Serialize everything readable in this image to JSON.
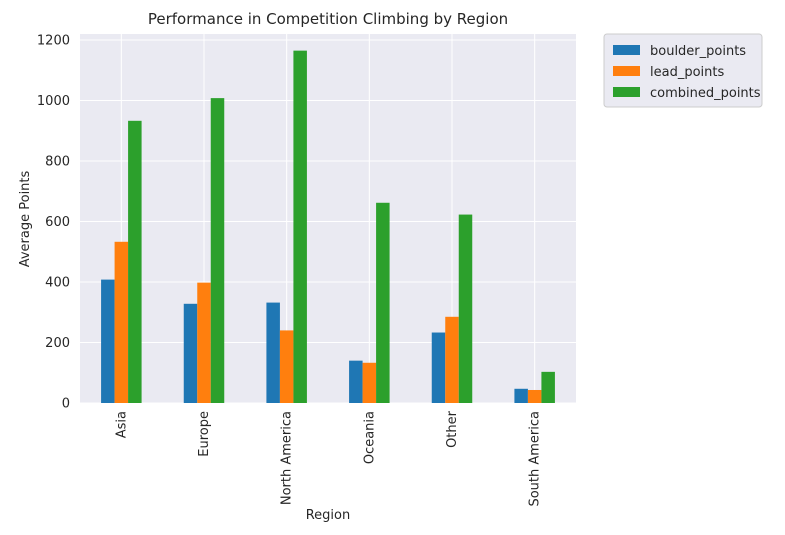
{
  "chart_data": {
    "type": "bar",
    "title": "Performance in Competition Climbing by Region",
    "xlabel": "Region",
    "ylabel": "Average Points",
    "ylim": [
      0,
      1220
    ],
    "yticks": [
      0,
      200,
      400,
      600,
      800,
      1000,
      1200
    ],
    "grid": true,
    "legend_position": "outside top-right",
    "categories": [
      "Asia",
      "Europe",
      "North America",
      "Oceania",
      "Other",
      "South America"
    ],
    "series": [
      {
        "name": "boulder_points",
        "color": "#1f77b4",
        "values": [
          408,
          328,
          332,
          140,
          233,
          47
        ]
      },
      {
        "name": "lead_points",
        "color": "#ff7f0e",
        "values": [
          533,
          398,
          240,
          133,
          285,
          43
        ]
      },
      {
        "name": "combined_points",
        "color": "#2ca02c",
        "values": [
          933,
          1008,
          1165,
          662,
          623,
          103
        ]
      }
    ]
  }
}
